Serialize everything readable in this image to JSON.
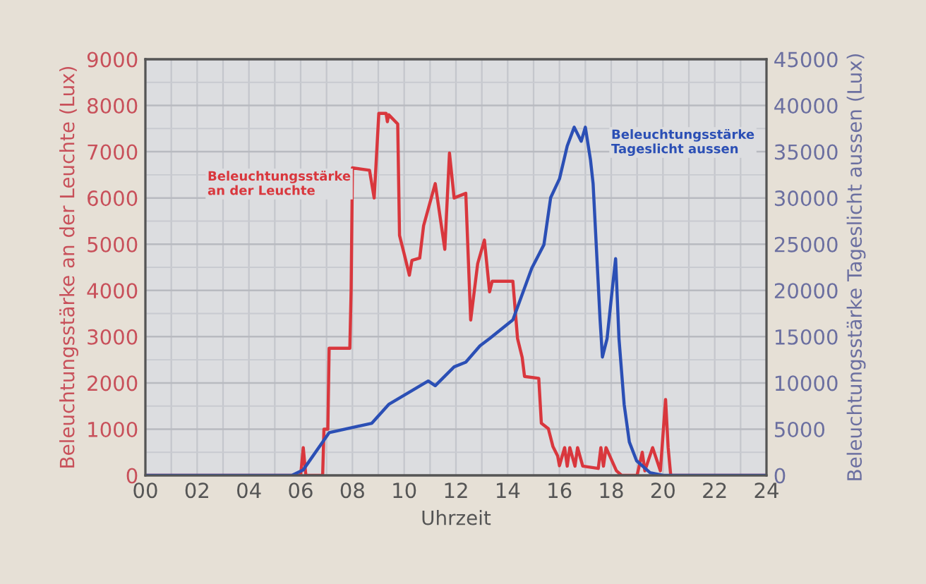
{
  "chart_data": {
    "type": "line",
    "xlabel": "Uhrzeit",
    "ylabel": "Beleuchtungsstärke an der Leuchte (Lux)",
    "y2label": "Beleuchtungsstärke Tageslicht aussen (Lux)",
    "xlim": [
      0,
      24
    ],
    "xticks": [
      {
        "value": 0,
        "label": "00"
      },
      {
        "value": 2,
        "label": "02"
      },
      {
        "value": 4,
        "label": "04"
      },
      {
        "value": 6,
        "label": "06"
      },
      {
        "value": 8,
        "label": "08"
      },
      10,
      12,
      14,
      16,
      18,
      20,
      22,
      24
    ],
    "ylim": [
      0,
      9000
    ],
    "yticks": [
      0,
      1000,
      2000,
      3000,
      4000,
      5000,
      6000,
      7000,
      8000,
      9000
    ],
    "y2lim": [
      0,
      45000
    ],
    "y2ticks": [
      0,
      5000,
      10000,
      15000,
      20000,
      25000,
      30000,
      35000,
      40000,
      45000
    ],
    "grid": true,
    "legend": false,
    "series": [
      {
        "name": "Beleuchtungsstärke an der Leuchte",
        "color": "#d9373d",
        "axis": "y",
        "x": [
          0,
          6.0,
          6.1,
          6.2,
          6.85,
          6.9,
          7.05,
          7.1,
          7.9,
          7.95,
          8.0,
          8.66,
          8.84,
          8.9,
          9.02,
          9.3,
          9.35,
          9.4,
          9.75,
          9.82,
          10.0,
          10.2,
          10.3,
          10.6,
          10.75,
          11.2,
          11.57,
          11.75,
          11.93,
          12.38,
          12.57,
          12.84,
          13.1,
          13.3,
          13.4,
          14.2,
          14.38,
          14.56,
          14.65,
          15.2,
          15.3,
          15.57,
          15.75,
          15.93,
          16.0,
          16.2,
          16.3,
          16.4,
          16.6,
          16.7,
          16.9,
          17.5,
          17.6,
          17.7,
          17.8,
          18.2,
          18.4,
          19.0,
          19.2,
          19.3,
          19.6,
          19.9,
          20.1,
          20.2,
          20.3,
          24
        ],
        "values": [
          0,
          0,
          600,
          0,
          0,
          1000,
          1000,
          2750,
          2750,
          4000,
          6650,
          6600,
          6000,
          6600,
          7830,
          7830,
          7650,
          7800,
          7600,
          5190,
          4790,
          4330,
          4650,
          4700,
          5400,
          6310,
          4890,
          6970,
          6000,
          6100,
          3360,
          4580,
          5090,
          3970,
          4200,
          4200,
          2960,
          2550,
          2140,
          2100,
          1130,
          1010,
          620,
          420,
          210,
          600,
          200,
          600,
          200,
          600,
          200,
          150,
          600,
          200,
          600,
          100,
          0,
          0,
          500,
          100,
          600,
          100,
          1640,
          600,
          0,
          0
        ]
      },
      {
        "name": "Beleuchtungsstärke Tageslicht aussen",
        "color": "#2b4fb5",
        "axis": "y2",
        "x": [
          0,
          5.66,
          6.1,
          7.1,
          8.75,
          9.4,
          10.93,
          11.2,
          11.93,
          12.38,
          12.93,
          13.3,
          14.2,
          14.93,
          15.4,
          15.66,
          16.0,
          16.3,
          16.57,
          16.84,
          17.0,
          17.2,
          17.3,
          17.57,
          17.66,
          17.84,
          18.03,
          18.17,
          18.3,
          18.5,
          18.7,
          18.98,
          19.5,
          20.0,
          24
        ],
        "values": [
          0,
          0,
          600,
          4620,
          5640,
          7670,
          10210,
          9700,
          11740,
          12240,
          14020,
          14790,
          16810,
          22400,
          24950,
          30030,
          32060,
          35620,
          37650,
          36130,
          37650,
          34100,
          31550,
          16810,
          12800,
          14790,
          19860,
          23430,
          14790,
          7670,
          3610,
          1580,
          300,
          0,
          0
        ]
      }
    ]
  }
}
